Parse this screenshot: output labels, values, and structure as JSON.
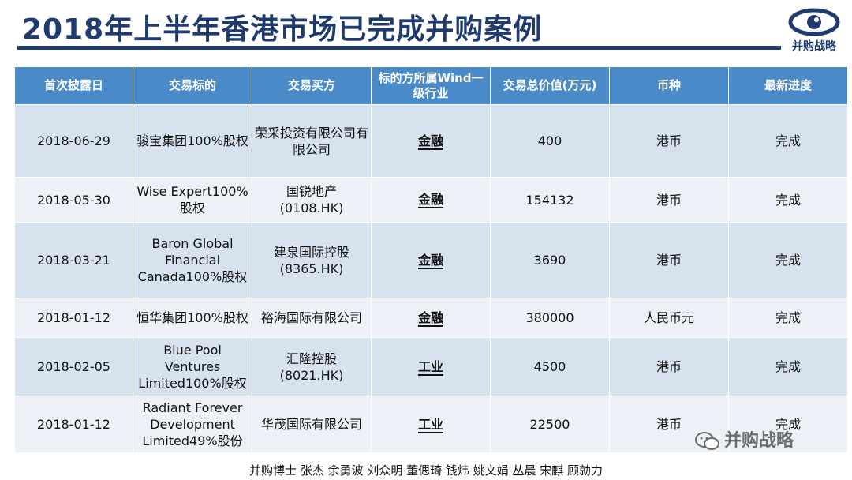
{
  "title": "2018年上半年香港市场已完成并购案例",
  "logo_text": "并购战略",
  "table": {
    "headers": [
      "首次披露日",
      "交易标的",
      "交易买方",
      "标的方所属Wind一级行业",
      "交易总价值(万元)",
      "币种",
      "最新进度"
    ],
    "rows": [
      {
        "date": "2018-06-29",
        "target": "骏宝集团100%股权",
        "buyer": "荣采投资有限公司有限公司",
        "industry": "金融",
        "value": "400",
        "currency": "港币",
        "status": "完成"
      },
      {
        "date": "2018-05-30",
        "target": "Wise Expert100%股权",
        "buyer": "国锐地产(0108.HK)",
        "industry": "金融",
        "value": "154132",
        "currency": "港币",
        "status": "完成"
      },
      {
        "date": "2018-03-21",
        "target": "Baron Global Financial Canada100%股权",
        "buyer": "建泉国际控股(8365.HK)",
        "industry": "金融",
        "value": "3690",
        "currency": "港币",
        "status": "完成"
      },
      {
        "date": "2018-01-12",
        "target": "恒华集团100%股权",
        "buyer": "裕海国际有限公司",
        "industry": "金融",
        "value": "380000",
        "currency": "人民币元",
        "status": "完成"
      },
      {
        "date": "2018-02-05",
        "target": "Blue Pool Ventures Limited100%股权",
        "buyer": "汇隆控股(8021.HK)",
        "industry": "工业",
        "value": "4500",
        "currency": "港币",
        "status": "完成"
      },
      {
        "date": "2018-01-12",
        "target": "Radiant Forever Development Limited49%股份",
        "buyer": "华茂国际有限公司",
        "industry": "工业",
        "value": "22500",
        "currency": "港币",
        "status": "完成"
      }
    ]
  },
  "footer": "并购博士 张杰 余勇波 刘众明 董偲琦 钱炜 姚文娟 丛晨 宋麒 顾勍力",
  "watermark": "并购战略",
  "colors": {
    "header_bg": "#4a8ac8",
    "row_odd": "#d7e2ef",
    "row_even": "#edf1f7",
    "title": "#1f3b6e"
  }
}
